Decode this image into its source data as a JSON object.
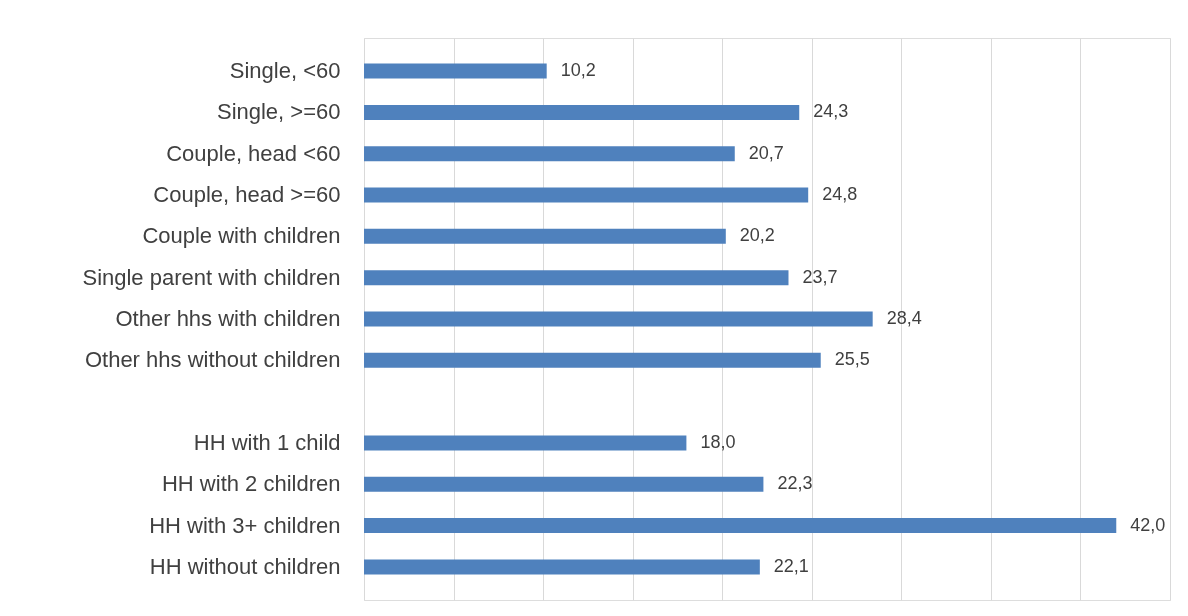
{
  "chart_data": {
    "type": "bar",
    "orientation": "horizontal",
    "categories": [
      "Single, <60",
      "Single, >=60",
      "Couple, head <60",
      "Couple, head >=60",
      "Couple with children",
      "Single parent with children",
      "Other hhs with children",
      "Other hhs without children",
      null,
      "HH with 1 child",
      "HH with 2 children",
      "HH with 3+ children",
      "HH without children"
    ],
    "values": [
      10.2,
      24.3,
      20.7,
      24.8,
      20.2,
      23.7,
      28.4,
      25.5,
      null,
      18.0,
      22.3,
      42.0,
      22.1
    ],
    "value_labels": [
      "10,2",
      "24,3",
      "20,7",
      "24,8",
      "20,2",
      "23,7",
      "28,4",
      "25,5",
      null,
      "18,0",
      "22,3",
      "42,0",
      "22,1"
    ],
    "color": "#4f81bd",
    "xlim": [
      0,
      45
    ],
    "xticks": [
      {
        "value": 0,
        "label": null
      },
      {
        "value": 5,
        "label": null
      },
      {
        "value": 10,
        "label": null
      },
      {
        "value": 15,
        "label": null
      },
      {
        "value": 20,
        "label": null
      },
      {
        "value": 25,
        "label": null
      },
      {
        "value": 30,
        "label": null
      },
      {
        "value": 35,
        "label": null
      },
      {
        "value": 40,
        "label": null
      },
      {
        "value": 45,
        "label": null
      }
    ],
    "grid": "x",
    "tick_labels": "y"
  }
}
